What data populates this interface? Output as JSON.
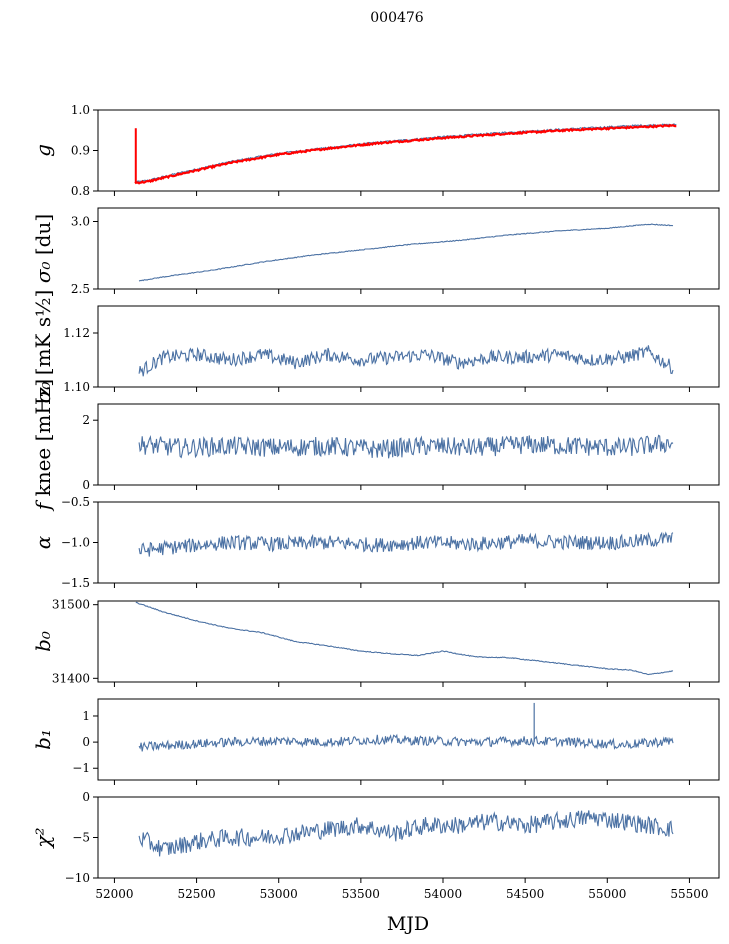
{
  "figure": {
    "title": "000476",
    "xlabel": "MJD"
  },
  "colors": {
    "series": "#4c72a4",
    "overlay": "#ff0000",
    "axes": "#000000",
    "background": "#ffffff"
  },
  "chart_data": [
    {
      "type": "line",
      "ylabel_main": "g",
      "ylabel_sub": "",
      "ylim": [
        0.8,
        1.0
      ],
      "yticks": [
        0.8,
        0.9,
        1.0
      ],
      "ytick_labels": [
        "0.8",
        "0.9",
        "1.0"
      ],
      "xlim": [
        51900,
        55680
      ],
      "x": [
        52125,
        52200,
        52400,
        52700,
        53000,
        53300,
        53600,
        54000,
        54400,
        54800,
        55200,
        55420
      ],
      "series": [
        {
          "name": "model",
          "values": [
            0.822,
            0.826,
            0.845,
            0.872,
            0.893,
            0.907,
            0.92,
            0.934,
            0.945,
            0.954,
            0.962,
            0.964
          ]
        },
        {
          "name": "fit",
          "values": [
            0.82,
            0.823,
            0.842,
            0.869,
            0.89,
            0.905,
            0.918,
            0.931,
            0.942,
            0.951,
            0.958,
            0.962
          ]
        }
      ],
      "spike": {
        "x": 52130,
        "ymax": 0.955,
        "ymin": 0.822
      }
    },
    {
      "type": "line",
      "ylabel_main": "σ₀",
      "ylabel_sub": "[du]",
      "ylim": [
        2.5,
        3.1
      ],
      "yticks": [
        2.5,
        3.0
      ],
      "ytick_labels": [
        "2.5",
        "3.0"
      ],
      "xlim": [
        51900,
        55680
      ],
      "x": [
        52150,
        52300,
        52600,
        52900,
        53200,
        53500,
        53800,
        54100,
        54400,
        54700,
        55000,
        55250,
        55400
      ],
      "series": [
        {
          "name": "sigma0",
          "values": [
            2.56,
            2.59,
            2.64,
            2.7,
            2.75,
            2.79,
            2.83,
            2.86,
            2.9,
            2.93,
            2.95,
            2.98,
            2.97
          ]
        }
      ]
    },
    {
      "type": "line",
      "ylabel_main": "σ₀",
      "ylabel_sub": "[mK s½]",
      "ylim": [
        1.1,
        1.13
      ],
      "yticks": [
        1.1,
        1.12
      ],
      "ytick_labels": [
        "1.10",
        "1.12"
      ],
      "xlim": [
        51900,
        55680
      ],
      "x": [
        52150,
        52300,
        52500,
        52700,
        52900,
        53100,
        53300,
        53500,
        53700,
        53900,
        54100,
        54300,
        54500,
        54700,
        54900,
        55100,
        55250,
        55400
      ],
      "series": [
        {
          "name": "sigma0_T",
          "values": [
            1.1055,
            1.111,
            1.112,
            1.11,
            1.112,
            1.109,
            1.112,
            1.11,
            1.111,
            1.112,
            1.109,
            1.111,
            1.111,
            1.112,
            1.11,
            1.111,
            1.113,
            1.107
          ]
        }
      ]
    },
    {
      "type": "line",
      "ylabel_main": "f",
      "ylabel_sub": "knee [mHz]",
      "ylim": [
        0,
        2.5
      ],
      "yticks": [
        0,
        2
      ],
      "ytick_labels": [
        "0",
        "2"
      ],
      "xlim": [
        51900,
        55680
      ],
      "x": [
        52150,
        52400,
        52700,
        53000,
        53300,
        53600,
        53900,
        54200,
        54500,
        54800,
        55100,
        55400
      ],
      "series": [
        {
          "name": "fknee",
          "values": [
            1.25,
            1.15,
            1.2,
            1.15,
            1.2,
            1.1,
            1.2,
            1.15,
            1.25,
            1.2,
            1.15,
            1.3
          ]
        }
      ]
    },
    {
      "type": "line",
      "ylabel_main": "α",
      "ylabel_sub": "",
      "ylim": [
        -1.5,
        -0.5
      ],
      "yticks": [
        -1.5,
        -1.0,
        -0.5
      ],
      "ytick_labels": [
        "−1.5",
        "−1.0",
        "−0.5"
      ],
      "xlim": [
        51900,
        55680
      ],
      "x": [
        52150,
        52400,
        52700,
        53000,
        53300,
        53600,
        53900,
        54200,
        54500,
        54800,
        55100,
        55400
      ],
      "series": [
        {
          "name": "alpha",
          "values": [
            -1.1,
            -1.05,
            -1.0,
            -1.02,
            -1.0,
            -1.03,
            -1.0,
            -1.02,
            -0.98,
            -1.0,
            -1.0,
            -0.95
          ]
        }
      ]
    },
    {
      "type": "line",
      "ylabel_main": "b₀",
      "ylabel_sub": "",
      "ylim": [
        31395,
        31505
      ],
      "yticks": [
        31400,
        31500
      ],
      "ytick_labels": [
        "31400",
        "31500"
      ],
      "xlim": [
        51900,
        55680
      ],
      "x": [
        52130,
        52300,
        52500,
        52700,
        52900,
        53100,
        53300,
        53500,
        53700,
        53850,
        54000,
        54200,
        54400,
        54600,
        54800,
        55000,
        55150,
        55250,
        55400
      ],
      "series": [
        {
          "name": "b0",
          "values": [
            31503,
            31490,
            31478,
            31468,
            31462,
            31450,
            31444,
            31437,
            31433,
            31431,
            31437,
            31429,
            31428,
            31423,
            31418,
            31413,
            31411,
            31405,
            31410
          ]
        }
      ]
    },
    {
      "type": "line",
      "ylabel_main": "b₁",
      "ylabel_sub": "",
      "ylim": [
        -1.45,
        1.65
      ],
      "yticks": [
        -1,
        0,
        1
      ],
      "ytick_labels": [
        "−1",
        "0",
        "1"
      ],
      "xlim": [
        51900,
        55680
      ],
      "x": [
        52150,
        52400,
        52700,
        53000,
        53300,
        53600,
        53900,
        54200,
        54500,
        54800,
        55100,
        55400
      ],
      "series": [
        {
          "name": "b1",
          "values": [
            -0.2,
            -0.1,
            0.0,
            0.05,
            0.0,
            0.1,
            0.05,
            0.0,
            0.05,
            0.0,
            -0.1,
            0.05
          ]
        }
      ],
      "spike": {
        "x": 54555,
        "ymax": 1.5,
        "ymin": 0.0
      }
    },
    {
      "type": "line",
      "ylabel_main": "χ²",
      "ylabel_sub": "",
      "ylim": [
        -10,
        0
      ],
      "yticks": [
        -10,
        -5,
        0
      ],
      "ytick_labels": [
        "−10",
        "−5",
        "0"
      ],
      "xlim": [
        51900,
        55680
      ],
      "x": [
        52150,
        52300,
        52500,
        52700,
        52900,
        53100,
        53300,
        53500,
        53700,
        53900,
        54100,
        54300,
        54500,
        54700,
        54900,
        55100,
        55250,
        55400
      ],
      "series": [
        {
          "name": "chi2",
          "values": [
            -5.0,
            -6.5,
            -5.5,
            -5.0,
            -5.0,
            -4.5,
            -4.0,
            -3.5,
            -4.5,
            -3.5,
            -3.5,
            -3.0,
            -3.5,
            -3.0,
            -2.5,
            -3.0,
            -3.5,
            -4.0
          ]
        }
      ],
      "xticks": [
        52000,
        52500,
        53000,
        53500,
        54000,
        54500,
        55000,
        55500
      ],
      "xtick_labels": [
        "52000",
        "52500",
        "53000",
        "53500",
        "54000",
        "54500",
        "55000",
        "55500"
      ]
    }
  ]
}
